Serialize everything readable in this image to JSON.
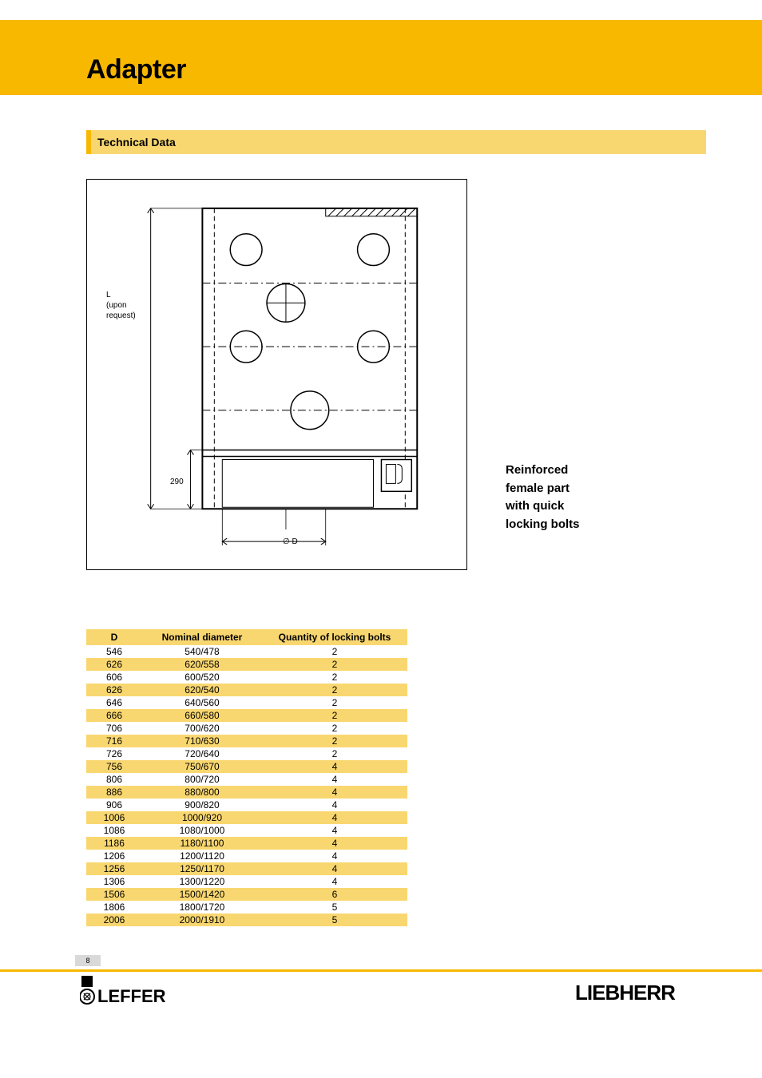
{
  "page": {
    "title": "Adapter",
    "section_title": "Technical Data",
    "page_number": "8"
  },
  "colors": {
    "brand_yellow": "#f9b800",
    "light_yellow": "#f9d770",
    "text": "#000000",
    "bg": "#ffffff",
    "grey": "#d9d9d9"
  },
  "diagram": {
    "left_label_line1": "L",
    "left_label_line2": "(upon",
    "left_label_line3": "request)",
    "base_dim": "290",
    "bottom_dim": "∅ D"
  },
  "side_caption": {
    "l1": "Reinforced",
    "l2": "female part",
    "l3": "with quick",
    "l4": "locking bolts"
  },
  "table": {
    "columns": [
      "D",
      "Nominal diameter",
      "Quantity of locking bolts"
    ],
    "rows": [
      [
        "546",
        "540/478",
        "2"
      ],
      [
        "626",
        "620/558",
        "2"
      ],
      [
        "606",
        "600/520",
        "2"
      ],
      [
        "626",
        "620/540",
        "2"
      ],
      [
        "646",
        "640/560",
        "2"
      ],
      [
        "666",
        "660/580",
        "2"
      ],
      [
        "706",
        "700/620",
        "2"
      ],
      [
        "716",
        "710/630",
        "2"
      ],
      [
        "726",
        "720/640",
        "2"
      ],
      [
        "756",
        "750/670",
        "4"
      ],
      [
        "806",
        "800/720",
        "4"
      ],
      [
        "886",
        "880/800",
        "4"
      ],
      [
        "906",
        "900/820",
        "4"
      ],
      [
        "1006",
        "1000/920",
        "4"
      ],
      [
        "1086",
        "1080/1000",
        "4"
      ],
      [
        "1186",
        "1180/1100",
        "4"
      ],
      [
        "1206",
        "1200/1120",
        "4"
      ],
      [
        "1256",
        "1250/1170",
        "4"
      ],
      [
        "1306",
        "1300/1220",
        "4"
      ],
      [
        "1506",
        "1500/1420",
        "6"
      ],
      [
        "1806",
        "1800/1720",
        "5"
      ],
      [
        "2006",
        "2000/1910",
        "5"
      ]
    ]
  },
  "logos": {
    "leffer": "LEFFER",
    "liebherr": "LIEBHERR"
  }
}
